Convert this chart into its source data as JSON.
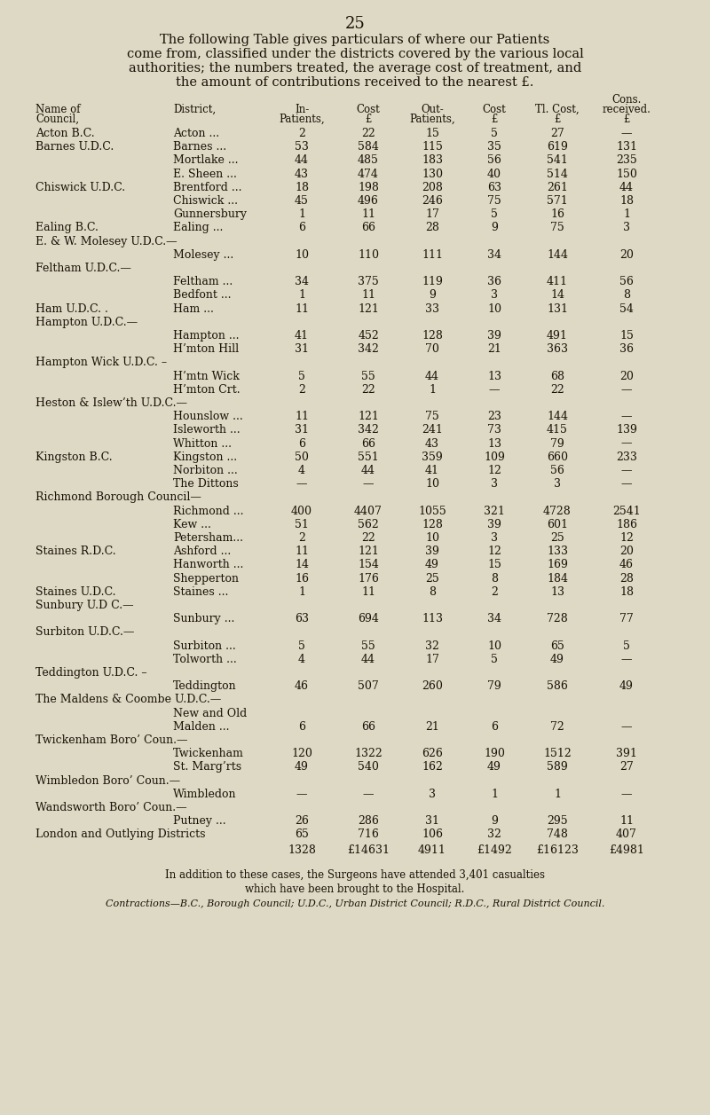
{
  "page_number": "25",
  "intro_text_lines": [
    "The following Table gives particulars of where our Patients",
    "come from, classified under the districts covered by the various local",
    "authorities; the numbers treated, the average cost of treatment, and",
    "the amount of contributions received to the nearest £."
  ],
  "rows": [
    {
      "council": "Acton B.C.",
      "district": "Acton",
      "dots": "...",
      "in_p": "2",
      "cost_in": "22",
      "out_p": "15",
      "cost_out": "5",
      "tl": "27",
      "cons": "—"
    },
    {
      "council": "Barnes U.D.C.",
      "district": "Barnes",
      "dots": "...",
      "in_p": "53",
      "cost_in": "584",
      "out_p": "115",
      "cost_out": "35",
      "tl": "619",
      "cons": "131"
    },
    {
      "council": "",
      "district": "Mortlake",
      "dots": "...",
      "in_p": "44",
      "cost_in": "485",
      "out_p": "183",
      "cost_out": "56",
      "tl": "541",
      "cons": "235"
    },
    {
      "council": "",
      "district": "E. Sheen",
      "dots": "...",
      "in_p": "43",
      "cost_in": "474",
      "out_p": "130",
      "cost_out": "40",
      "tl": "514",
      "cons": "150"
    },
    {
      "council": "Chiswick U.D.C.",
      "district": "Brentford ...",
      "dots": "",
      "in_p": "18",
      "cost_in": "198",
      "out_p": "208",
      "cost_out": "63",
      "tl": "261",
      "cons": "44"
    },
    {
      "council": "",
      "district": "Chiswick",
      "dots": "...",
      "in_p": "45",
      "cost_in": "496",
      "out_p": "246",
      "cost_out": "75",
      "tl": "571",
      "cons": "18"
    },
    {
      "council": "",
      "district": "Gunnersbury",
      "dots": "",
      "in_p": "1",
      "cost_in": "11",
      "out_p": "17",
      "cost_out": "5",
      "tl": "16",
      "cons": "1"
    },
    {
      "council": "Ealing B.C.",
      "district": "Ealing",
      "dots": "...",
      "in_p": "6",
      "cost_in": "66",
      "out_p": "28",
      "cost_out": "9",
      "tl": "75",
      "cons": "3"
    },
    {
      "council": "E. & W. Molesey U.D.C.—",
      "district": "",
      "dots": "",
      "in_p": "",
      "cost_in": "",
      "out_p": "",
      "cost_out": "",
      "tl": "",
      "cons": ""
    },
    {
      "council": "",
      "district": "Molesey",
      "dots": "...",
      "in_p": "10",
      "cost_in": "110",
      "out_p": "111",
      "cost_out": "34",
      "tl": "144",
      "cons": "20"
    },
    {
      "council": "Feltham U.D.C.—",
      "district": "",
      "dots": "",
      "in_p": "",
      "cost_in": "",
      "out_p": "",
      "cost_out": "",
      "tl": "",
      "cons": ""
    },
    {
      "council": "",
      "district": "Feltham",
      "dots": "...",
      "in_p": "34",
      "cost_in": "375",
      "out_p": "119",
      "cost_out": "36",
      "tl": "411",
      "cons": "56"
    },
    {
      "council": "",
      "district": "Bedfont",
      "dots": "...",
      "in_p": "1",
      "cost_in": "11",
      "out_p": "9",
      "cost_out": "3",
      "tl": "14",
      "cons": "8"
    },
    {
      "council": "Ham U.D.C. .",
      "district": "Ham",
      "dots": "...",
      "in_p": "11",
      "cost_in": "121",
      "out_p": "33",
      "cost_out": "10",
      "tl": "131",
      "cons": "54"
    },
    {
      "council": "Hampton U.D.C.—",
      "district": "",
      "dots": "",
      "in_p": "",
      "cost_in": "",
      "out_p": "",
      "cost_out": "",
      "tl": "",
      "cons": ""
    },
    {
      "council": "",
      "district": "Hampton",
      "dots": "...",
      "in_p": "41",
      "cost_in": "452",
      "out_p": "128",
      "cost_out": "39",
      "tl": "491",
      "cons": "15"
    },
    {
      "council": "",
      "district": "H’mton Hill",
      "dots": "",
      "in_p": "31",
      "cost_in": "342",
      "out_p": "70",
      "cost_out": "21",
      "tl": "363",
      "cons": "36"
    },
    {
      "council": "Hampton Wick U.D.C. –",
      "district": "",
      "dots": "",
      "in_p": "",
      "cost_in": "",
      "out_p": "",
      "cost_out": "",
      "tl": "",
      "cons": ""
    },
    {
      "council": "",
      "district": "H’mtn Wick",
      "dots": "",
      "in_p": "5",
      "cost_in": "55",
      "out_p": "44",
      "cost_out": "13",
      "tl": "68",
      "cons": "20"
    },
    {
      "council": "",
      "district": "H’mton Crt.",
      "dots": "",
      "in_p": "2",
      "cost_in": "22",
      "out_p": "1",
      "cost_out": "—",
      "tl": "22",
      "cons": "—"
    },
    {
      "council": "Heston & Islew’th U.D.C.—",
      "district": "",
      "dots": "",
      "in_p": "",
      "cost_in": "",
      "out_p": "",
      "cost_out": "",
      "tl": "",
      "cons": ""
    },
    {
      "council": "",
      "district": "Hounslow",
      "dots": "...",
      "in_p": "11",
      "cost_in": "121",
      "out_p": "75",
      "cost_out": "23",
      "tl": "144",
      "cons": "—"
    },
    {
      "council": "",
      "district": "Isleworth",
      "dots": "...",
      "in_p": "31",
      "cost_in": "342",
      "out_p": "241",
      "cost_out": "73",
      "tl": "415",
      "cons": "139"
    },
    {
      "council": "",
      "district": "Whitton",
      "dots": "...",
      "in_p": "6",
      "cost_in": "66",
      "out_p": "43",
      "cost_out": "13",
      "tl": "79",
      "cons": "—"
    },
    {
      "council": "Kingston B.C.",
      "district": "Kingston",
      "dots": "...",
      "in_p": "50",
      "cost_in": "551",
      "out_p": "359",
      "cost_out": "109",
      "tl": "660",
      "cons": "233"
    },
    {
      "council": "",
      "district": "Norbiton",
      "dots": "...",
      "in_p": "4",
      "cost_in": "44",
      "out_p": "41",
      "cost_out": "12",
      "tl": "56",
      "cons": "—"
    },
    {
      "council": "",
      "district": "The Dittons",
      "dots": "",
      "in_p": "—",
      "cost_in": "—",
      "out_p": "10",
      "cost_out": "3",
      "tl": "3",
      "cons": "—"
    },
    {
      "council": "Richmond Borough Council—",
      "district": "",
      "dots": "",
      "in_p": "",
      "cost_in": "",
      "out_p": "",
      "cost_out": "",
      "tl": "",
      "cons": ""
    },
    {
      "council": "",
      "district": "Richmond",
      "dots": "...",
      "in_p": "400",
      "cost_in": "4407",
      "out_p": "1055",
      "cost_out": "321",
      "tl": "4728",
      "cons": "2541"
    },
    {
      "council": "",
      "district": "Kew",
      "dots": "...",
      "in_p": "51",
      "cost_in": "562",
      "out_p": "128",
      "cost_out": "39",
      "tl": "601",
      "cons": "186"
    },
    {
      "council": "",
      "district": "Petersham...",
      "dots": "",
      "in_p": "2",
      "cost_in": "22",
      "out_p": "10",
      "cost_out": "3",
      "tl": "25",
      "cons": "12"
    },
    {
      "council": "Staines R.D.C.",
      "district": "Ashford",
      "dots": "...",
      "in_p": "11",
      "cost_in": "121",
      "out_p": "39",
      "cost_out": "12",
      "tl": "133",
      "cons": "20"
    },
    {
      "council": "",
      "district": "Hanworth",
      "dots": "...",
      "in_p": "14",
      "cost_in": "154",
      "out_p": "49",
      "cost_out": "15",
      "tl": "169",
      "cons": "46"
    },
    {
      "council": "",
      "district": "Shepperton",
      "dots": "",
      "in_p": "16",
      "cost_in": "176",
      "out_p": "25",
      "cost_out": "8",
      "tl": "184",
      "cons": "28"
    },
    {
      "council": "Staines U.D.C.",
      "district": "Staines",
      "dots": "...",
      "in_p": "1",
      "cost_in": "11",
      "out_p": "8",
      "cost_out": "2",
      "tl": "13",
      "cons": "18"
    },
    {
      "council": "Sunbury U.D C.—",
      "district": "",
      "dots": "",
      "in_p": "",
      "cost_in": "",
      "out_p": "",
      "cost_out": "",
      "tl": "",
      "cons": ""
    },
    {
      "council": "",
      "district": "Sunbury",
      "dots": "...",
      "in_p": "63",
      "cost_in": "694",
      "out_p": "113",
      "cost_out": "34",
      "tl": "728",
      "cons": "77"
    },
    {
      "council": "Surbiton U.D.C.—",
      "district": "",
      "dots": "",
      "in_p": "",
      "cost_in": "",
      "out_p": "",
      "cost_out": "",
      "tl": "",
      "cons": ""
    },
    {
      "council": "",
      "district": "Surbiton",
      "dots": "...",
      "in_p": "5",
      "cost_in": "55",
      "out_p": "32",
      "cost_out": "10",
      "tl": "65",
      "cons": "5"
    },
    {
      "council": "",
      "district": "Tolworth",
      "dots": "...",
      "in_p": "4",
      "cost_in": "44",
      "out_p": "17",
      "cost_out": "5",
      "tl": "49",
      "cons": "—"
    },
    {
      "council": "Teddington U.D.C. –",
      "district": "",
      "dots": "",
      "in_p": "",
      "cost_in": "",
      "out_p": "",
      "cost_out": "",
      "tl": "",
      "cons": ""
    },
    {
      "council": "",
      "district": "Teddington",
      "dots": "",
      "in_p": "46",
      "cost_in": "507",
      "out_p": "260",
      "cost_out": "79",
      "tl": "586",
      "cons": "49"
    },
    {
      "council": "The Maldens & Coombe U.D.C.—",
      "district": "",
      "dots": "",
      "in_p": "",
      "cost_in": "",
      "out_p": "",
      "cost_out": "",
      "tl": "",
      "cons": ""
    },
    {
      "council": "",
      "district": "New and Old",
      "dots": "",
      "in_p": "",
      "cost_in": "",
      "out_p": "",
      "cost_out": "",
      "tl": "",
      "cons": ""
    },
    {
      "council": "",
      "district": "Malden ...",
      "dots": "",
      "in_p": "6",
      "cost_in": "66",
      "out_p": "21",
      "cost_out": "6",
      "tl": "72",
      "cons": "—"
    },
    {
      "council": "Twickenham Boro’ Coun.—",
      "district": "",
      "dots": "",
      "in_p": "",
      "cost_in": "",
      "out_p": "",
      "cost_out": "",
      "tl": "",
      "cons": ""
    },
    {
      "council": "",
      "district": "Twickenham",
      "dots": "",
      "in_p": "120",
      "cost_in": "1322",
      "out_p": "626",
      "cost_out": "190",
      "tl": "1512",
      "cons": "391"
    },
    {
      "council": "",
      "district": "St. Marg’rts",
      "dots": "",
      "in_p": "49",
      "cost_in": "540",
      "out_p": "162",
      "cost_out": "49",
      "tl": "589",
      "cons": "27"
    },
    {
      "council": "Wimbledon Boro’ Coun.—",
      "district": "",
      "dots": "",
      "in_p": "",
      "cost_in": "",
      "out_p": "",
      "cost_out": "",
      "tl": "",
      "cons": ""
    },
    {
      "council": "",
      "district": "Wimbledon",
      "dots": "",
      "in_p": "—",
      "cost_in": "—",
      "out_p": "3",
      "cost_out": "1",
      "tl": "1",
      "cons": "—"
    },
    {
      "council": "Wandsworth Boro’ Coun.—",
      "district": "",
      "dots": "",
      "in_p": "",
      "cost_in": "",
      "out_p": "",
      "cost_out": "",
      "tl": "",
      "cons": ""
    },
    {
      "council": "",
      "district": "Putney",
      "dots": "...",
      "in_p": "26",
      "cost_in": "286",
      "out_p": "31",
      "cost_out": "9",
      "tl": "295",
      "cons": "11"
    },
    {
      "council": "London and Outlying Districts",
      "district": "",
      "dots": "",
      "in_p": "65",
      "cost_in": "716",
      "out_p": "106",
      "cost_out": "32",
      "tl": "748",
      "cons": "407"
    }
  ],
  "totals": {
    "in_p": "1328",
    "cost_in": "£14631",
    "out_p": "4911",
    "cost_out": "£1492",
    "tl": "£16123",
    "cons": "£4981"
  },
  "footer1": "In addition to these cases, the Surgeons have attended 3,401 casualties",
  "footer2": "which have been brought to the Hospital.",
  "footer3": "Contractions—B.C., Borough Council; U.D.C., Urban District Council; R.D.C., Rural District Council.",
  "footer3_italic_part": "Contractions",
  "bg_color": "#ddd9c4",
  "text_color": "#1a1008"
}
